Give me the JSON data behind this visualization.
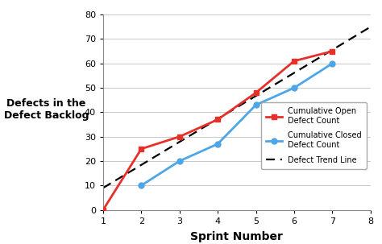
{
  "title": "",
  "xlabel": "Sprint Number",
  "ylabel": "Defects in the\nDefect Backlog",
  "xlim": [
    1,
    8
  ],
  "ylim": [
    0,
    80
  ],
  "xticks": [
    1,
    2,
    3,
    4,
    5,
    6,
    7,
    8
  ],
  "yticks": [
    0,
    10,
    20,
    30,
    40,
    50,
    60,
    70,
    80
  ],
  "cumulative_open": {
    "x": [
      1,
      2,
      3,
      4,
      5,
      6,
      7
    ],
    "y": [
      0,
      25,
      30,
      37,
      48,
      61,
      65
    ],
    "color": "#e8302a",
    "marker": "s",
    "label": "Cumulative Open\nDefect Count"
  },
  "cumulative_closed": {
    "x": [
      2,
      3,
      4,
      5,
      6,
      7
    ],
    "y": [
      10,
      20,
      27,
      43,
      50,
      60
    ],
    "color": "#4da6e8",
    "marker": "o",
    "label": "Cumulative Closed\nDefect Count"
  },
  "trend_line": {
    "x": [
      1,
      8
    ],
    "y": [
      9,
      75
    ],
    "color": "#000000",
    "linestyle": "--",
    "label": "Defect Trend Line"
  },
  "background_color": "#ffffff",
  "grid_color": "#c8c8c8",
  "legend_fontsize": 7.0,
  "xlabel_fontsize": 10,
  "ylabel_fontsize": 9,
  "tick_fontsize": 8
}
